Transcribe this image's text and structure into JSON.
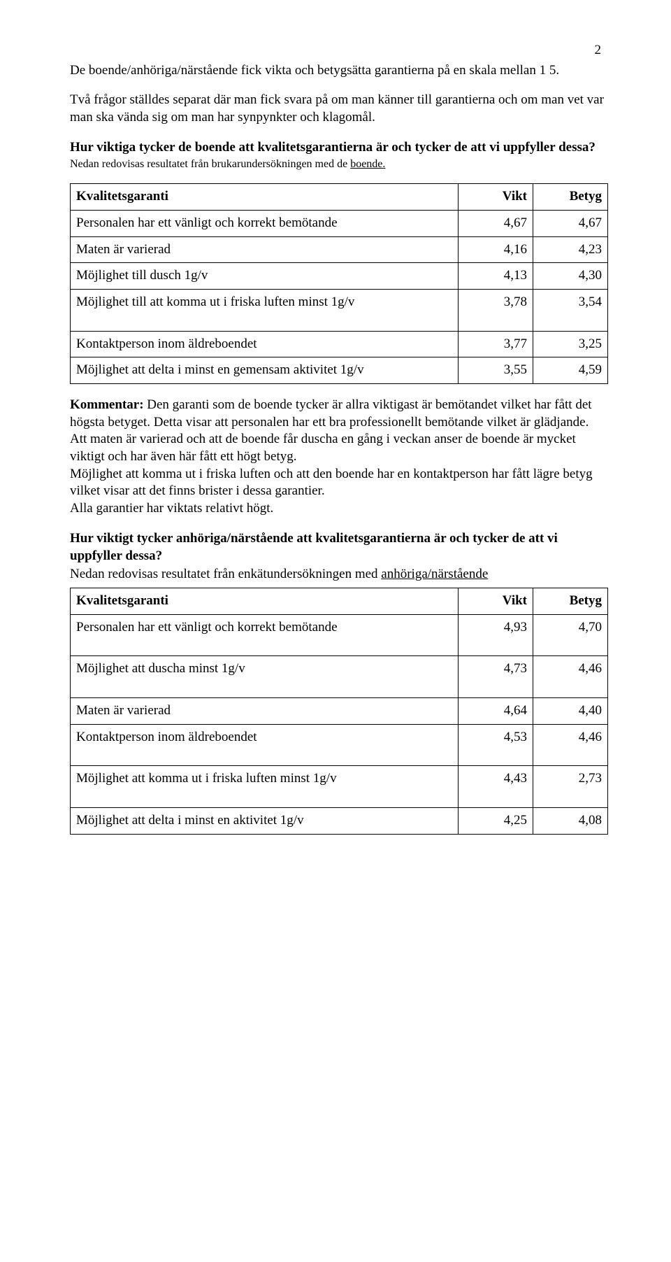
{
  "page_number": "2",
  "intro_para1": "De boende/anhöriga/närstående fick vikta och betygsätta garantierna på en skala mellan 1 5.",
  "intro_para2": "Två frågor ställdes separat där man fick svara på om man känner till garantierna och om man vet var man ska vända sig om man har synpynkter och klagomål.",
  "q1_heading": "Hur viktiga tycker de boende att kvalitetsgarantierna är och tycker de att vi uppfyller dessa?",
  "q1_subnote_prefix": "Nedan redovisas resultatet från brukarundersökningen med de ",
  "q1_subnote_u": "boende.",
  "table1": {
    "headers": {
      "label": "Kvalitetsgaranti",
      "vikt": "Vikt",
      "betyg": "Betyg"
    },
    "rows": [
      {
        "label": "Personalen har ett vänligt och korrekt bemötande",
        "vikt": "4,67",
        "betyg": "4,67"
      },
      {
        "label": "Maten är varierad",
        "vikt": "4,16",
        "betyg": "4,23"
      },
      {
        "label": "Möjlighet till dusch 1g/v",
        "vikt": "4,13",
        "betyg": "4,30"
      },
      {
        "label": "Möjlighet till att komma ut i friska luften minst 1g/v",
        "vikt": "3,78",
        "betyg": "3,54"
      },
      {
        "label": "Kontaktperson inom äldreboendet",
        "vikt": "3,77",
        "betyg": "3,25"
      },
      {
        "label": "Möjlighet att delta i minst en gemensam aktivitet 1g/v",
        "vikt": "3,55",
        "betyg": "4,59"
      }
    ]
  },
  "kommentar_label": "Kommentar: ",
  "kommentar_body": "Den garanti som de boende tycker är allra viktigast är bemötandet vilket har fått det högsta betyget. Detta visar att personalen har ett bra professionellt bemötande vilket är glädjande.\nAtt maten är varierad och att de boende får duscha en gång i veckan anser de boende är mycket viktigt och har även här fått ett högt betyg.\nMöjlighet att komma ut i friska luften och att den boende har en kontaktperson har fått lägre betyg vilket visar att det finns brister i dessa garantier.\nAlla garantier har viktats relativt högt.",
  "q2_heading": "Hur viktigt tycker anhöriga/närstående att kvalitetsgarantierna är och tycker de att vi uppfyller dessa?",
  "q2_subnote_prefix": "Nedan redovisas resultatet från enkätundersökningen med ",
  "q2_subnote_u": "anhöriga/närstående",
  "table2": {
    "headers": {
      "label": "Kvalitetsgaranti",
      "vikt": "Vikt",
      "betyg": "Betyg"
    },
    "rows": [
      {
        "label": "Personalen har ett vänligt och korrekt bemötande",
        "vikt": "4,93",
        "betyg": "4,70"
      },
      {
        "label": "Möjlighet att duscha minst 1g/v",
        "vikt": "4,73",
        "betyg": "4,46"
      },
      {
        "label": "Maten är varierad",
        "vikt": "4,64",
        "betyg": "4,40"
      },
      {
        "label": "Kontaktperson  inom äldreboendet",
        "vikt": "4,53",
        "betyg": "4,46"
      },
      {
        "label": "Möjlighet att komma ut i friska luften minst 1g/v",
        "vikt": "4,43",
        "betyg": "2,73"
      },
      {
        "label": "Möjlighet att delta i minst en aktivitet 1g/v",
        "vikt": "4,25",
        "betyg": "4,08"
      }
    ]
  }
}
